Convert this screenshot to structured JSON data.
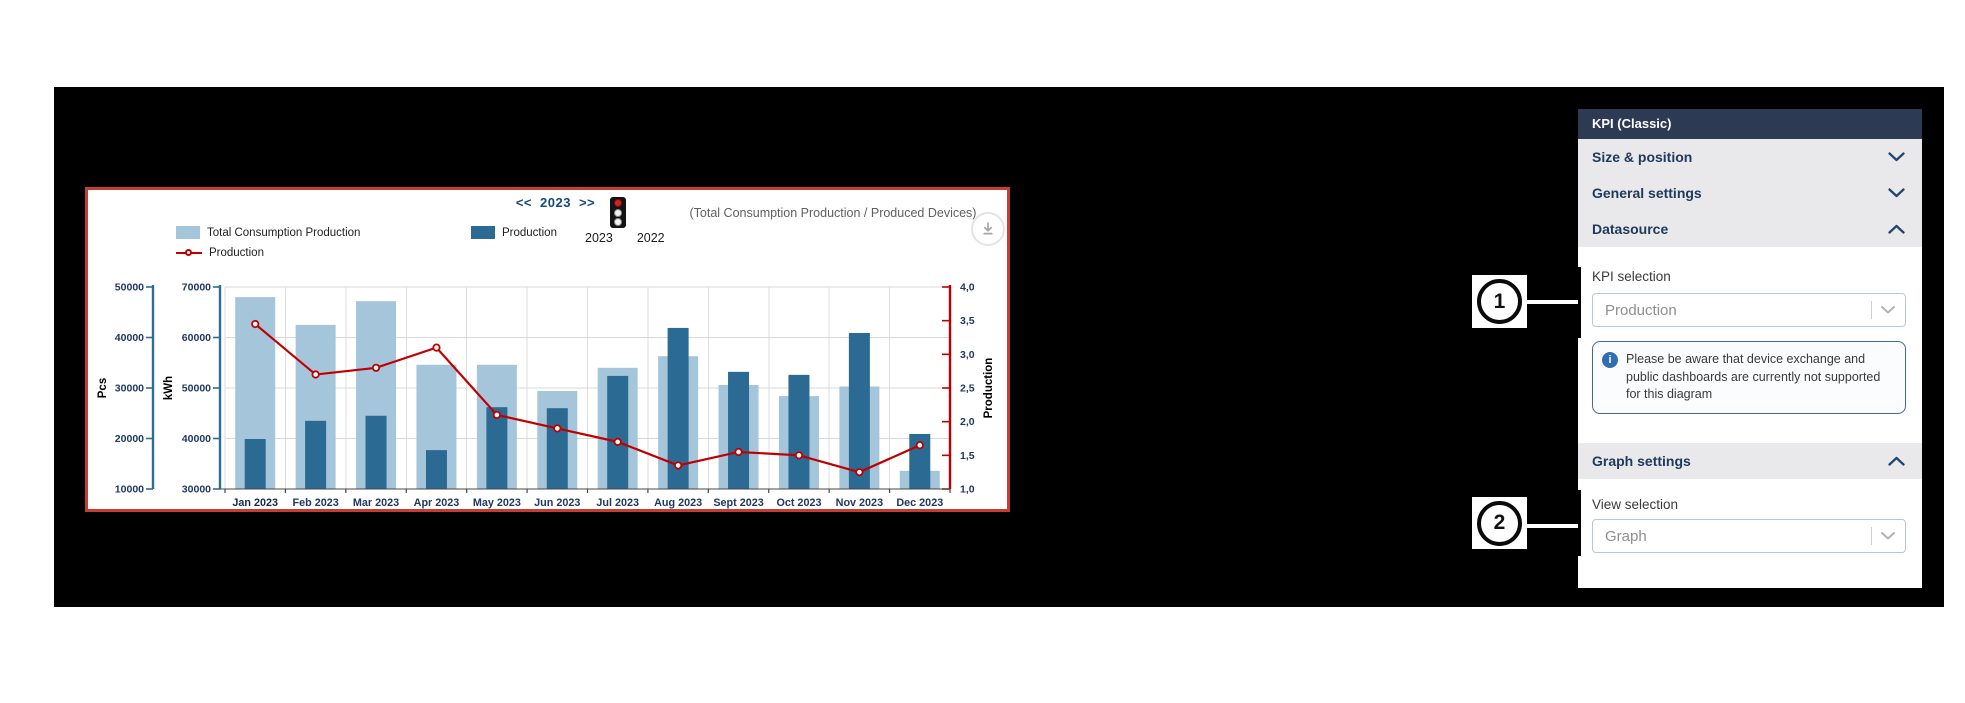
{
  "colors": {
    "panel_border_red": "#c63d33",
    "bar_light_blue": "#a5c6da",
    "bar_dark_blue": "#2b6a92",
    "line_red": "#c00000",
    "axis_text_navy": "#1f3864",
    "sidebar_header_bg": "#2c3a54",
    "section_row_bg": "#e9e9ec"
  },
  "chart": {
    "nav_prev": "<<",
    "year": "2023",
    "nav_next": ">>",
    "traffic_light_years": [
      "2023",
      "2022"
    ],
    "subtitle": "(Total Consumption Production / Produced Devices)",
    "legend": [
      {
        "label": "Total Consumption Production"
      },
      {
        "label": "Production"
      },
      {
        "label": "Production"
      }
    ]
  },
  "chart_data": {
    "type": "combo bar+line",
    "categories": [
      "Jan 2023",
      "Feb 2023",
      "Mar 2023",
      "Apr 2023",
      "May 2023",
      "Jun 2023",
      "Jul 2023",
      "Aug 2023",
      "Sept 2023",
      "Oct 2023",
      "Nov 2023",
      "Dec 2023"
    ],
    "series": [
      {
        "name": "Total Consumption Production",
        "type": "bar",
        "axis": "kwh",
        "color": "#a5c6da",
        "values": [
          68000,
          62500,
          67200,
          54600,
          54600,
          49400,
          54000,
          56300,
          50600,
          48400,
          50300,
          33600
        ]
      },
      {
        "name": "Production",
        "type": "bar",
        "axis": "pcs",
        "color": "#2b6a92",
        "values": [
          19900,
          23500,
          24500,
          17700,
          26200,
          26000,
          32400,
          41900,
          33200,
          32600,
          40900,
          20900
        ]
      },
      {
        "name": "Production",
        "type": "line",
        "axis": "prod",
        "color": "#c00000",
        "values": [
          3.45,
          2.7,
          2.8,
          3.1,
          2.1,
          1.9,
          1.7,
          1.35,
          1.55,
          1.5,
          1.25,
          1.65
        ]
      }
    ],
    "axes": {
      "pcs": {
        "label": "Pcs",
        "min": 10000,
        "max": 50000,
        "ticks": [
          10000,
          20000,
          30000,
          40000,
          50000
        ]
      },
      "kwh": {
        "label": "kWh",
        "min": 30000,
        "max": 70000,
        "ticks": [
          30000,
          40000,
          50000,
          60000,
          70000
        ]
      },
      "prod": {
        "label": "Production",
        "min": 1.0,
        "max": 4.0,
        "ticks": [
          "1,0",
          "1,5",
          "2,0",
          "2,5",
          "3,0",
          "3,5",
          "4,0"
        ]
      }
    },
    "grid": true,
    "legend_position": "top-left"
  },
  "sidebar": {
    "title": "KPI (Classic)",
    "sections": [
      {
        "label": "Size & position",
        "state": "collapsed"
      },
      {
        "label": "General settings",
        "state": "collapsed"
      },
      {
        "label": "Datasource",
        "state": "expanded"
      }
    ],
    "kpi_selection": {
      "label": "KPI selection",
      "value": "Production"
    },
    "info_icon_glyph": "i",
    "info_note": "Please be aware that device exchange and public dashboards are currently not supported for this diagram",
    "graph_settings": {
      "label": "Graph settings",
      "state": "expanded"
    },
    "view_selection": {
      "label": "View selection",
      "value": "Graph"
    }
  },
  "callouts": [
    {
      "number": "1",
      "target": "KPI selection"
    },
    {
      "number": "2",
      "target": "View selection"
    }
  ]
}
